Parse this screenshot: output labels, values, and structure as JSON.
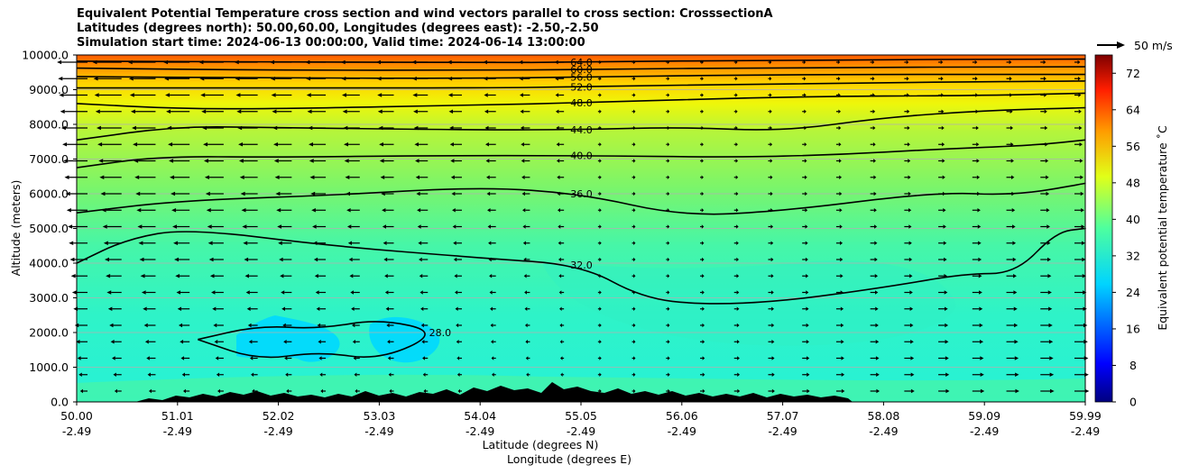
{
  "title_lines": [
    "Equivalent Potential Temperature cross section and wind vectors parallel to cross section: CrosssectionA",
    "Latitudes (degrees north): 50.00,60.00, Longitudes (degrees east): -2.50,-2.50",
    "Simulation start time: 2024-06-13 00:00:00, Valid time: 2024-06-14 13:00:00"
  ],
  "chart_data": {
    "type": "heatmap",
    "title": "Equivalent Potential Temperature cross section and wind vectors parallel to cross section: CrosssectionA",
    "xlabel": "Latitude (degrees N)",
    "xlabel2": "Longitude (degrees E)",
    "ylabel": "Altitude (meters)",
    "xlim": [
      50.0,
      59.99
    ],
    "ylim": [
      0,
      10000
    ],
    "x_ticks": [
      "50.00",
      "51.01",
      "52.02",
      "53.03",
      "54.04",
      "55.05",
      "56.06",
      "57.07",
      "58.08",
      "59.09",
      "59.99"
    ],
    "x_ticks_lon": [
      "-2.49",
      "-2.49",
      "-2.49",
      "-2.49",
      "-2.49",
      "-2.49",
      "-2.49",
      "-2.49",
      "-2.49",
      "-2.49",
      "-2.49"
    ],
    "y_ticks": [
      "0.0",
      "1000.0",
      "2000.0",
      "3000.0",
      "4000.0",
      "5000.0",
      "6000.0",
      "7000.0",
      "8000.0",
      "9000.0",
      "10000.0"
    ],
    "grid": true,
    "colorbar": {
      "label": "Equivalent potential temperature ˚C",
      "range": [
        0,
        76
      ],
      "ticks": [
        "0",
        "8",
        "16",
        "24",
        "32",
        "40",
        "48",
        "56",
        "64",
        "72"
      ],
      "colormap": "jet"
    },
    "quiver_key": "50 m/s",
    "contour_levels": [
      "28.0",
      "32.0",
      "36.0",
      "40.0",
      "44.0",
      "48.0",
      "52.0",
      "56.0",
      "60.0",
      "64.0"
    ],
    "contours": [
      {
        "level": 64,
        "label": "64.0",
        "points": [
          [
            50.0,
            9820
          ],
          [
            52.0,
            9800
          ],
          [
            54.0,
            9780
          ],
          [
            55.0,
            9790
          ],
          [
            57.0,
            9860
          ],
          [
            59.99,
            9880
          ]
        ]
      },
      {
        "level": 60,
        "label": "60.0",
        "points": [
          [
            50.0,
            9620
          ],
          [
            52.0,
            9560
          ],
          [
            54.0,
            9560
          ],
          [
            55.0,
            9580
          ],
          [
            57.0,
            9640
          ],
          [
            59.99,
            9660
          ]
        ]
      },
      {
        "level": 56,
        "label": "56.0",
        "points": [
          [
            50.0,
            9380
          ],
          [
            52.0,
            9330
          ],
          [
            54.0,
            9330
          ],
          [
            55.0,
            9360
          ],
          [
            57.0,
            9440
          ],
          [
            59.99,
            9440
          ]
        ]
      },
      {
        "level": 52,
        "label": "52.0",
        "points": [
          [
            50.0,
            9050
          ],
          [
            52.0,
            9050
          ],
          [
            54.0,
            9050
          ],
          [
            55.0,
            9080
          ],
          [
            57.0,
            9180
          ],
          [
            59.99,
            9250
          ]
        ]
      },
      {
        "level": 48,
        "label": "48.0",
        "points": [
          [
            50.0,
            8600
          ],
          [
            51.0,
            8450
          ],
          [
            52.0,
            8450
          ],
          [
            54.0,
            8560
          ],
          [
            55.0,
            8620
          ],
          [
            57.0,
            8800
          ],
          [
            59.0,
            8830
          ],
          [
            59.99,
            8900
          ]
        ]
      },
      {
        "level": 44,
        "label": "44.0",
        "points": [
          [
            50.0,
            7550
          ],
          [
            51.0,
            7950
          ],
          [
            52.0,
            7900
          ],
          [
            54.0,
            7840
          ],
          [
            55.0,
            7850
          ],
          [
            56.0,
            7920
          ],
          [
            57.0,
            7800
          ],
          [
            58.0,
            8200
          ],
          [
            59.0,
            8400
          ],
          [
            59.99,
            8480
          ]
        ]
      },
      {
        "level": 40,
        "label": "40.0",
        "points": [
          [
            50.0,
            6750
          ],
          [
            50.8,
            7080
          ],
          [
            52.0,
            7050
          ],
          [
            53.5,
            7100
          ],
          [
            55.0,
            7100
          ],
          [
            56.5,
            7050
          ],
          [
            57.5,
            7120
          ],
          [
            58.5,
            7280
          ],
          [
            59.5,
            7400
          ],
          [
            59.99,
            7550
          ]
        ]
      },
      {
        "level": 36,
        "label": "36.0",
        "points": [
          [
            50.0,
            5450
          ],
          [
            51.0,
            5800
          ],
          [
            52.5,
            5950
          ],
          [
            54.0,
            6200
          ],
          [
            55.0,
            6000
          ],
          [
            56.0,
            5350
          ],
          [
            57.0,
            5500
          ],
          [
            58.5,
            6050
          ],
          [
            59.3,
            5950
          ],
          [
            59.99,
            6300
          ]
        ]
      },
      {
        "level": 32,
        "label": "32.0",
        "points": [
          [
            50.0,
            4000
          ],
          [
            50.5,
            4700
          ],
          [
            51.1,
            5000
          ],
          [
            52.5,
            4500
          ],
          [
            54.0,
            4150
          ],
          [
            55.0,
            3950
          ],
          [
            55.6,
            3000
          ],
          [
            56.2,
            2800
          ],
          [
            57.0,
            2900
          ],
          [
            58.0,
            3300
          ],
          [
            58.8,
            3700
          ],
          [
            59.3,
            3700
          ],
          [
            59.7,
            4900
          ],
          [
            59.99,
            5000
          ]
        ]
      },
      {
        "level": 28,
        "label": "28.0",
        "points": [
          [
            51.2,
            1800
          ],
          [
            51.8,
            2200
          ],
          [
            52.4,
            2100
          ],
          [
            53.0,
            2400
          ],
          [
            53.6,
            2000
          ],
          [
            53.0,
            1200
          ],
          [
            52.4,
            1450
          ],
          [
            51.8,
            1200
          ],
          [
            51.2,
            1800
          ]
        ]
      }
    ],
    "terrain_note": "Terrain (black) along the bottom between 50.7 and 57.6 degrees N"
  }
}
